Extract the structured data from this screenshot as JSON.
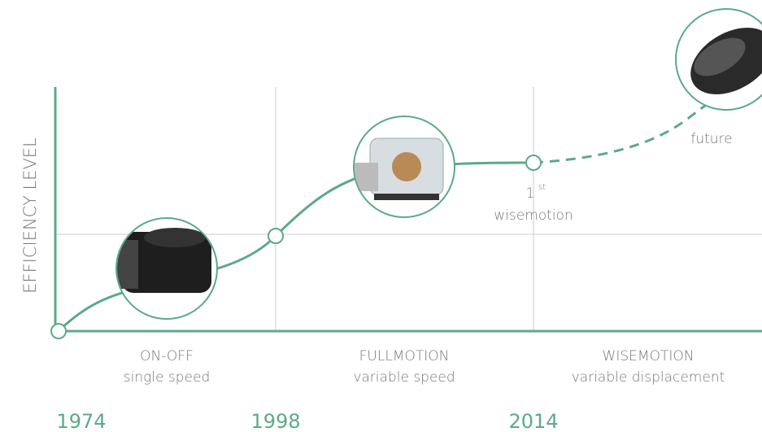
{
  "axis_label": "EFFICIENCY LEVEL",
  "eras": [
    {
      "name": "ON-OFF",
      "subtitle": "single speed"
    },
    {
      "name": "FULLMOTION",
      "subtitle": "variable speed"
    },
    {
      "name": "WISEMOTION",
      "subtitle": "variable displacement"
    }
  ],
  "years": [
    "1974",
    "1998",
    "2014"
  ],
  "milestone": {
    "number": "1",
    "suffix": "st",
    "label": "wisemotion"
  },
  "future_label": "future"
}
